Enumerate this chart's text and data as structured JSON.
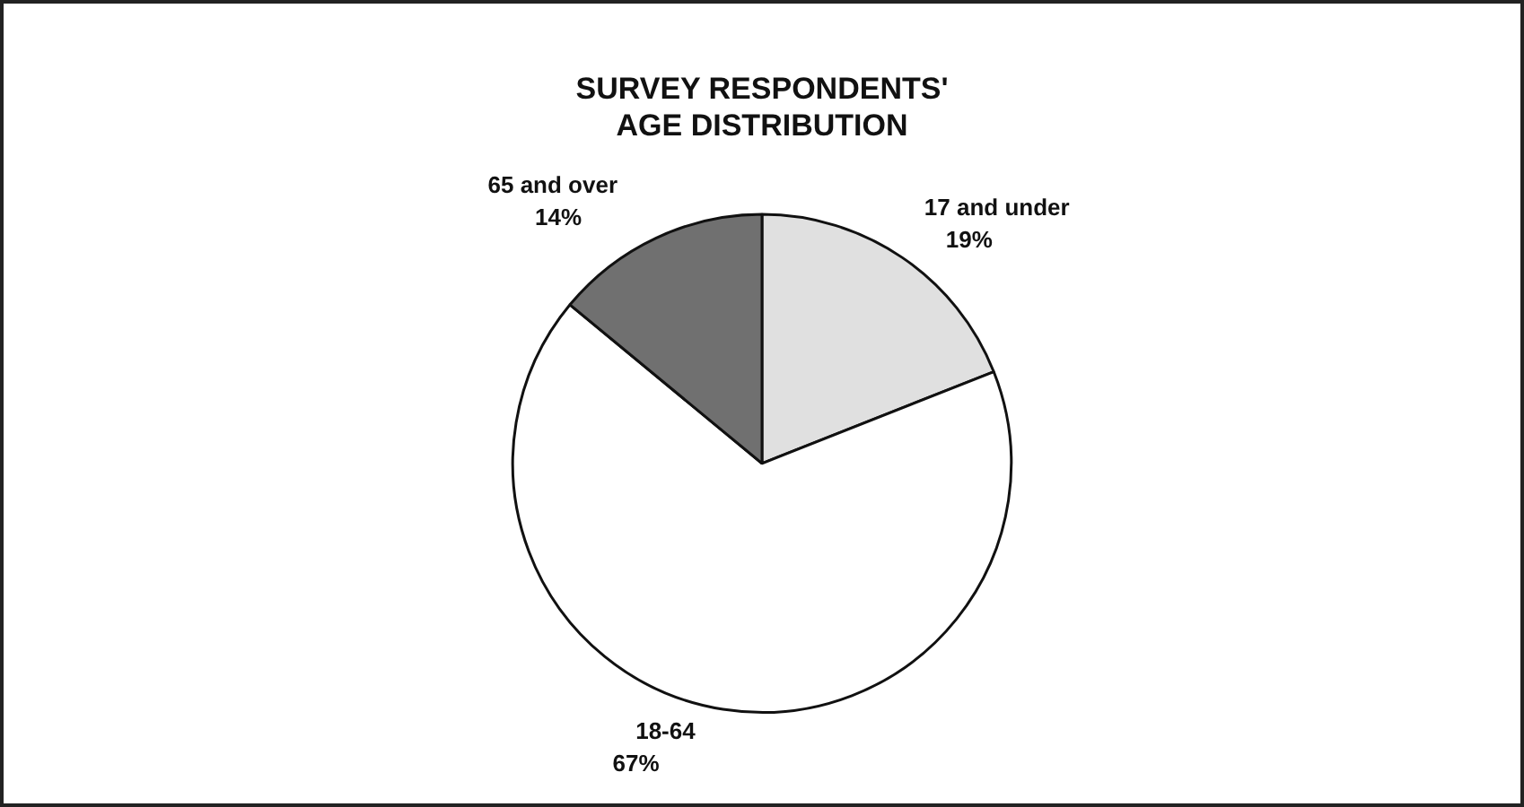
{
  "chart_data": {
    "type": "pie",
    "title": "SURVEY RESPONDENTS' AGE DISTRIBUTION",
    "categories": [
      "17 and under",
      "18-64",
      "65 and over"
    ],
    "values": [
      19,
      67,
      14
    ],
    "colors": [
      "#e0e0e0",
      "#ffffff",
      "#707070"
    ],
    "value_labels": [
      "19%",
      "67%",
      "14%"
    ],
    "legend": false
  }
}
